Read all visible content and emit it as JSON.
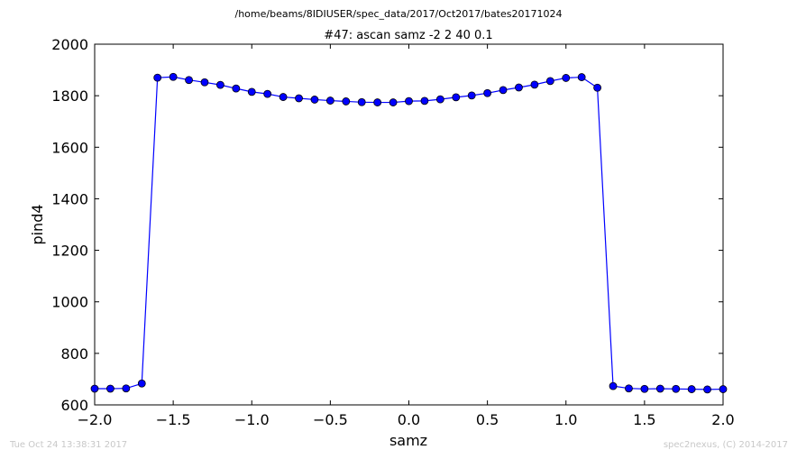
{
  "suptitle": "/home/beams/8IDIUSER/spec_data/2017/Oct2017/bates20171024",
  "footer_left": "Tue Oct 24 13:38:31 2017",
  "footer_right": "spec2nexus, (C) 2014-2017",
  "colors": {
    "series": "#0000ff",
    "axes": "#000000",
    "footer": "#c8c8c8"
  },
  "chart_data": {
    "type": "line",
    "title": "#47: ascan  samz -2 2  40 0.1",
    "xlabel": "samz",
    "ylabel": "pind4",
    "xlim": [
      -2.0,
      2.0
    ],
    "ylim": [
      600,
      2000
    ],
    "xticks": [
      "−2.0",
      "−1.5",
      "−1.0",
      "−0.5",
      "0.0",
      "0.5",
      "1.0",
      "1.5",
      "2.0"
    ],
    "yticks": [
      "600",
      "800",
      "1000",
      "1200",
      "1400",
      "1600",
      "1800",
      "2000"
    ],
    "grid": false,
    "marker": "circle",
    "series": [
      {
        "x": [
          -2.0,
          -1.9,
          -1.8,
          -1.7,
          -1.6,
          -1.5,
          -1.4,
          -1.3,
          -1.2,
          -1.1,
          -1.0,
          -0.9,
          -0.8,
          -0.7,
          -0.6,
          -0.5,
          -0.4,
          -0.3,
          -0.2,
          -0.1,
          0.0,
          0.1,
          0.2,
          0.3,
          0.4,
          0.5,
          0.6,
          0.7,
          0.8,
          0.9,
          1.0,
          1.1,
          1.2,
          1.3,
          1.4,
          1.5,
          1.6,
          1.7,
          1.8,
          1.9,
          2.0
        ],
        "y": [
          663,
          663,
          664,
          683,
          1870,
          1873,
          1861,
          1852,
          1842,
          1828,
          1815,
          1807,
          1795,
          1790,
          1785,
          1781,
          1778,
          1775,
          1774,
          1774,
          1779,
          1780,
          1786,
          1794,
          1801,
          1810,
          1822,
          1832,
          1843,
          1857,
          1869,
          1872,
          1831,
          673,
          664,
          662,
          663,
          662,
          661,
          660,
          661
        ]
      }
    ]
  }
}
